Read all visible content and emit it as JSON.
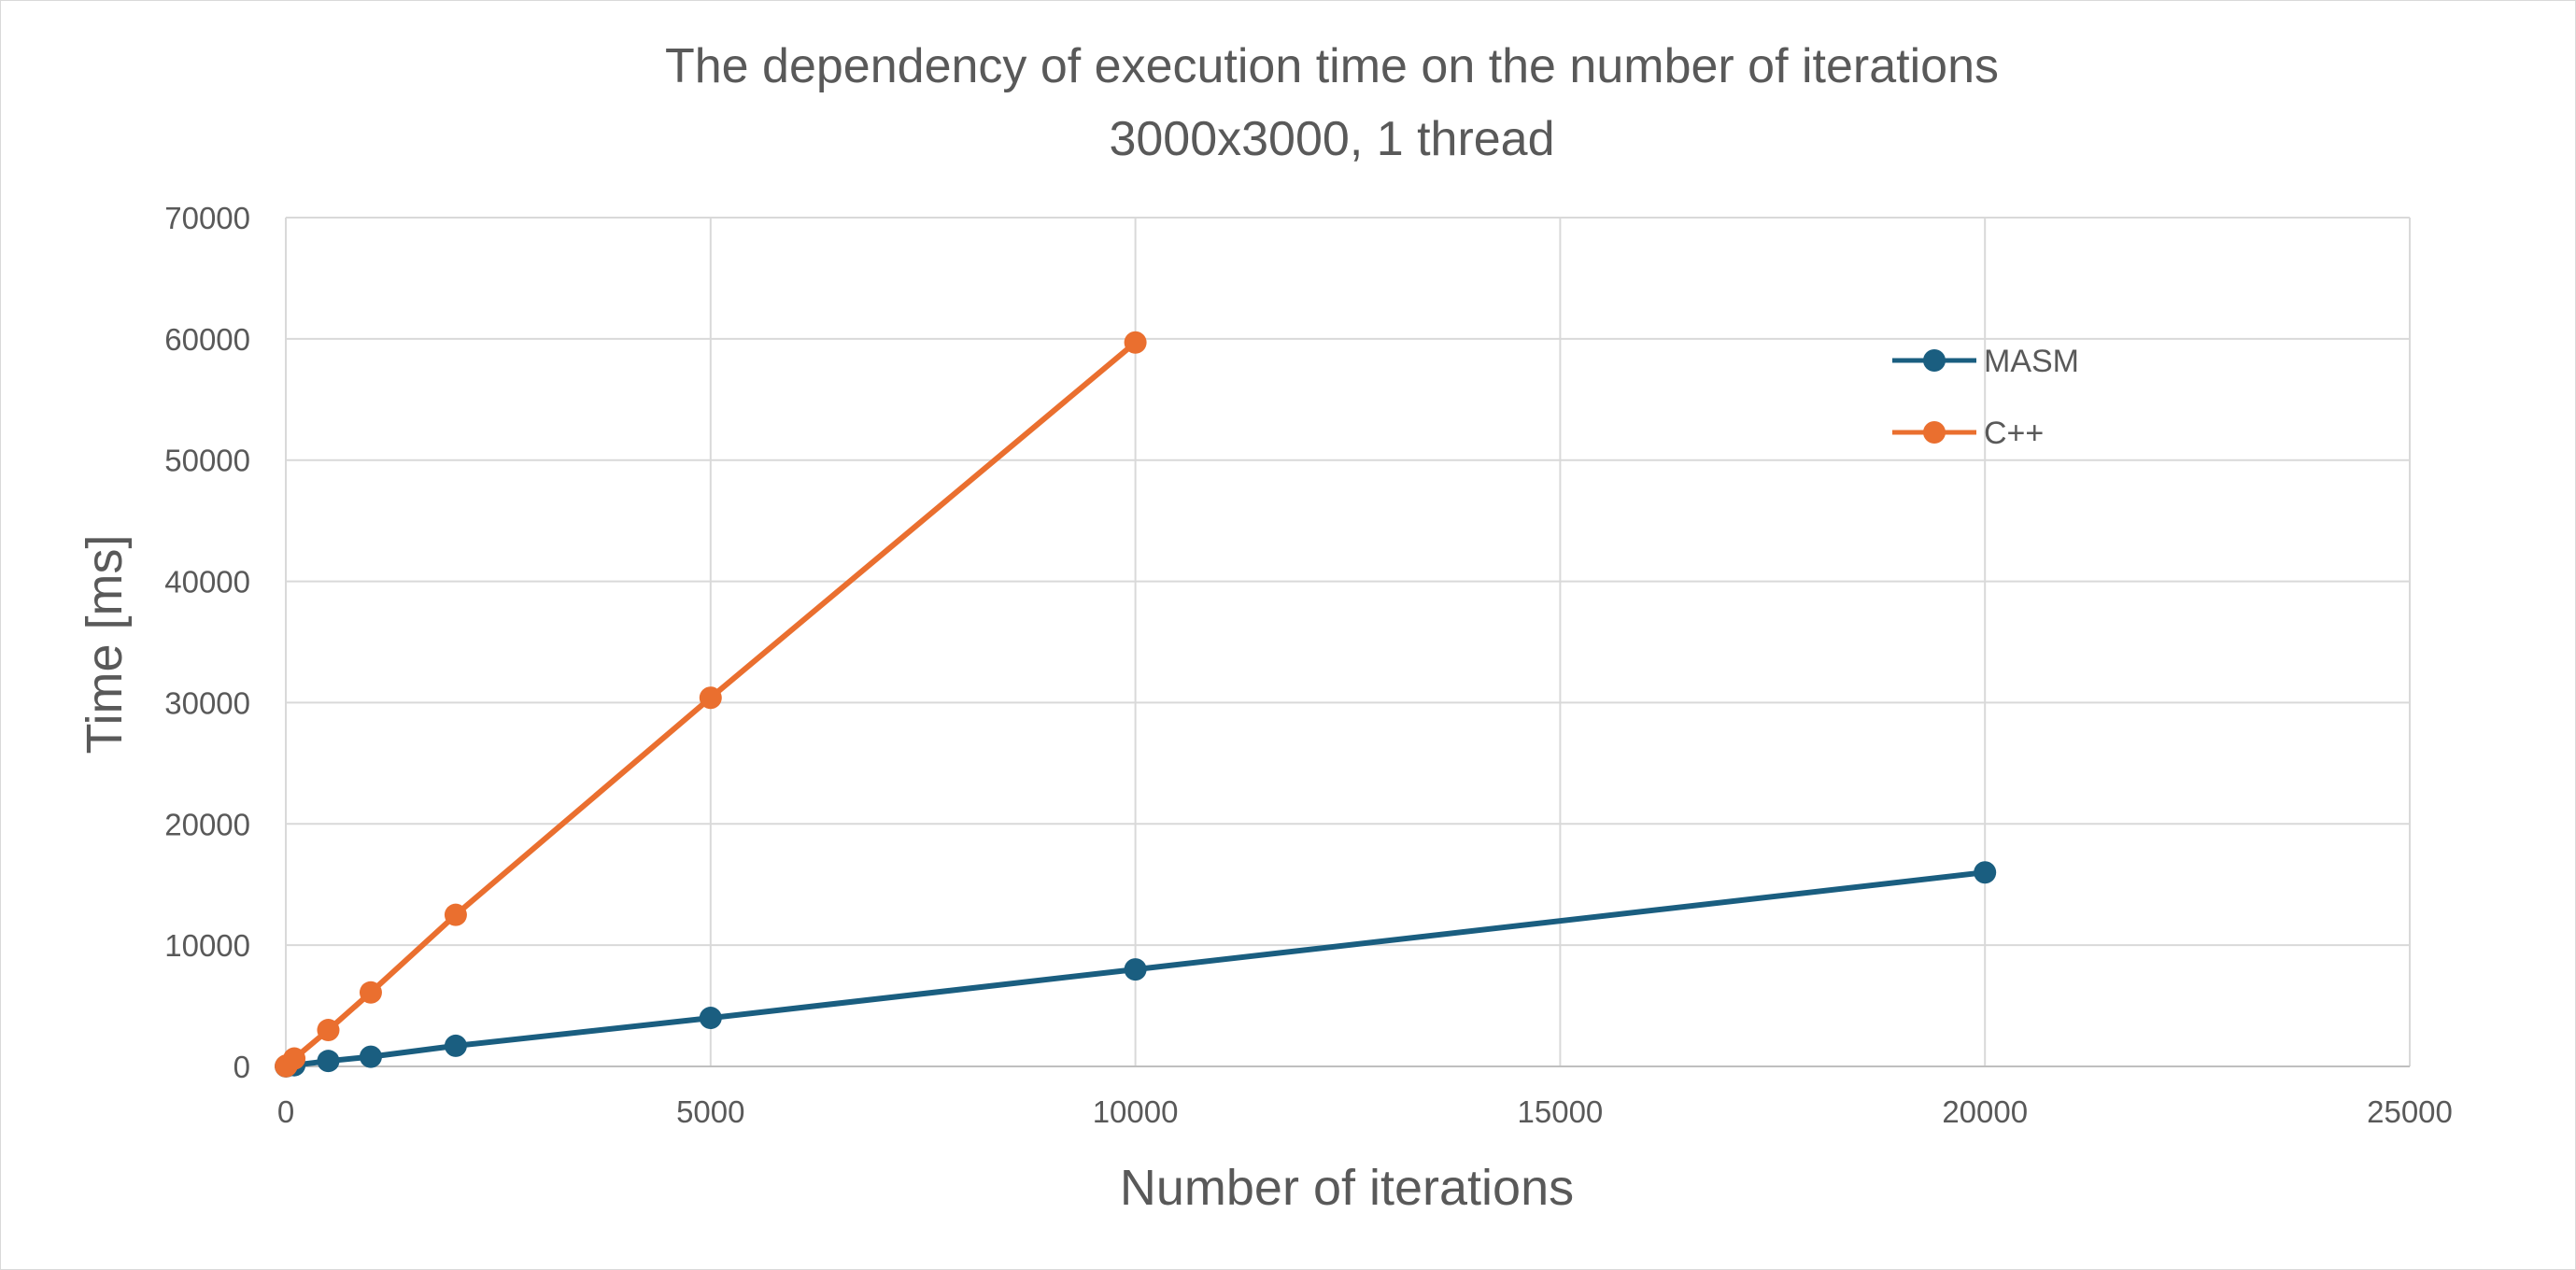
{
  "chart_data": {
    "type": "line",
    "title": "The dependency of execution time on the number of iterations",
    "subtitle": "3000x3000, 1 thread",
    "xlabel": "Number of iterations",
    "ylabel": "Time [ms]",
    "xlim": [
      0,
      25000
    ],
    "ylim": [
      0,
      70000
    ],
    "x_ticks": [
      0,
      5000,
      10000,
      15000,
      20000,
      25000
    ],
    "y_ticks": [
      0,
      10000,
      20000,
      30000,
      40000,
      50000,
      60000,
      70000
    ],
    "grid": true,
    "legend_position": "top-right",
    "series": [
      {
        "name": "MASM",
        "color": "#1a5e80",
        "x": [
          1,
          10,
          100,
          500,
          1000,
          2000,
          5000,
          10000,
          20000
        ],
        "y": [
          10,
          30,
          100,
          450,
          800,
          1700,
          4000,
          8000,
          16000
        ]
      },
      {
        "name": "C++",
        "color": "#ea6f2f",
        "x": [
          1,
          10,
          100,
          500,
          1000,
          2000,
          5000,
          10000
        ],
        "y": [
          20,
          80,
          650,
          3000,
          6100,
          12500,
          30400,
          59700
        ]
      }
    ]
  }
}
